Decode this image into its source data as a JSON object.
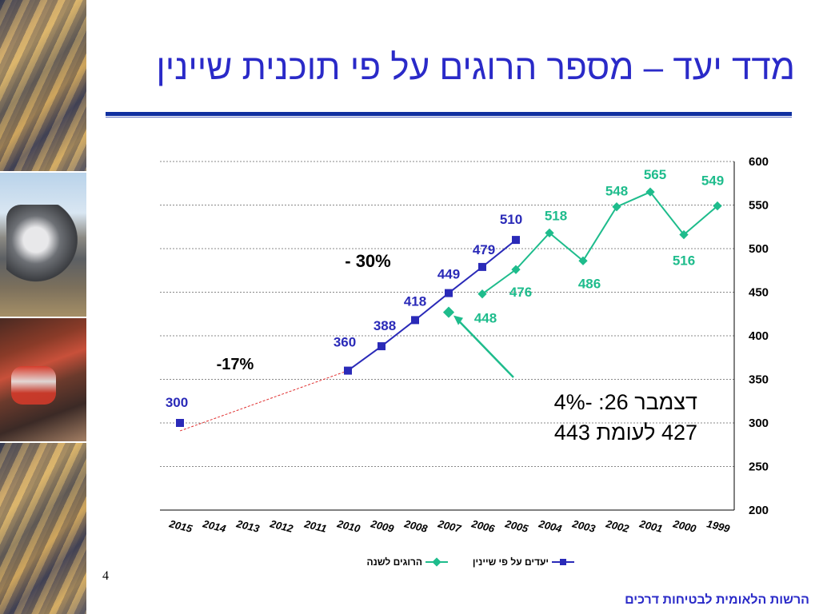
{
  "slide": {
    "title": "מדד יעד – מספר הרוגים על פי תוכנית שיינין",
    "page_number": "4",
    "footer": "הרשות הלאומית לבטיחות דרכים"
  },
  "colors": {
    "title": "#2a2ac8",
    "actual": "#1ebc8c",
    "target": "#2a2ab8",
    "trend": "#e03030",
    "axis": "#000000"
  },
  "annotations": {
    "neg30": "- 30%",
    "neg17": "-17%",
    "note_line1": "דצמבר 26: -4%",
    "note_line2": "427 לעומת 443"
  },
  "chart_data": {
    "type": "line",
    "x_reversed": true,
    "categories": [
      "1999",
      "2000",
      "2001",
      "2002",
      "2003",
      "2004",
      "2005",
      "2006",
      "2007",
      "2008",
      "2009",
      "2010",
      "2011",
      "2012",
      "2013",
      "2014",
      "2015"
    ],
    "y_ticks": [
      "200",
      "250",
      "300",
      "350",
      "400",
      "450",
      "500",
      "550",
      "600"
    ],
    "ylim": [
      200,
      600
    ],
    "grid": true,
    "legend_position": "bottom",
    "series": [
      {
        "name": "הרוגים לשנה",
        "marker": "diamond",
        "color": "#1ebc8c",
        "values": [
          549,
          516,
          565,
          548,
          486,
          518,
          476,
          448,
          null,
          null,
          null,
          null,
          null,
          null,
          null,
          null,
          null
        ],
        "labels": [
          "549",
          "516",
          "565",
          "548",
          "486",
          "518",
          "476",
          "448"
        ]
      },
      {
        "name": "יעדים על פי שיינין",
        "marker": "square",
        "color": "#2a2ab8",
        "values": [
          null,
          null,
          null,
          null,
          null,
          null,
          510,
          479,
          449,
          418,
          388,
          360,
          null,
          null,
          null,
          null,
          300
        ],
        "labels": [
          "510",
          "479",
          "449",
          "418",
          "388",
          "360",
          "300"
        ]
      }
    ],
    "extra_points": [
      {
        "x": "2007",
        "y": 427,
        "color": "#1ebc8c",
        "marker": "diamond"
      }
    ]
  }
}
